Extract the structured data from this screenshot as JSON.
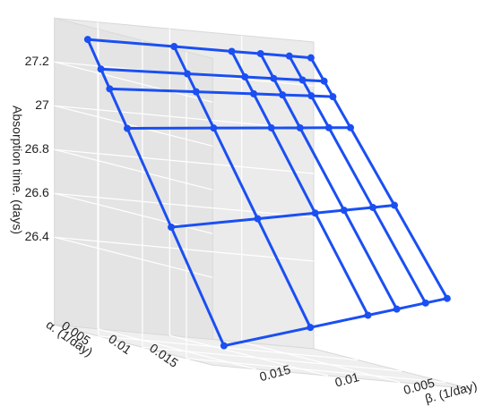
{
  "chart_data": {
    "type": "surface3d",
    "xlabel": "α. (1/day)",
    "ylabel": "β. (1/day)",
    "zlabel": "Absorption time. (days)",
    "alpha": [
      0.0005,
      0.002,
      0.003,
      0.005,
      0.01,
      0.016
    ],
    "beta": [
      0.0005,
      0.002,
      0.004,
      0.006,
      0.01,
      0.016
    ],
    "z": [
      [
        27.33,
        27.329,
        27.328,
        27.326,
        27.324,
        27.32
      ],
      [
        27.239,
        27.235,
        27.23,
        27.225,
        27.215,
        27.2
      ],
      [
        27.178,
        27.173,
        27.165,
        27.158,
        27.143,
        27.12
      ],
      [
        27.057,
        27.048,
        27.035,
        27.023,
        26.998,
        26.96
      ],
      [
        26.754,
        26.735,
        26.71,
        26.685,
        26.635,
        26.56
      ],
      [
        26.39,
        26.36,
        26.32,
        26.28,
        26.2,
        26.08
      ]
    ],
    "color": "#1a4ff2",
    "xlim": [
      0,
      0.018
    ],
    "ylim": [
      0,
      0.018
    ],
    "zlim": [
      26,
      27.4
    ],
    "xticks": [
      0.005,
      0.01,
      0.015
    ],
    "yticks": [
      0.005,
      0.01,
      0.015
    ],
    "zticks": [
      26.4,
      26.6,
      26.8,
      27,
      27.2
    ],
    "grid": true
  }
}
